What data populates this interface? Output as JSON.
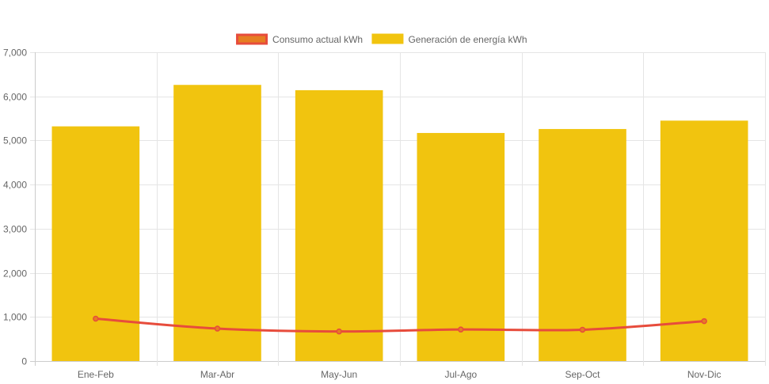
{
  "chart_data": {
    "type": "bar",
    "categories": [
      "Ene-Feb",
      "Mar-Abr",
      "May-Jun",
      "Jul-Ago",
      "Sep-Oct",
      "Nov-Dic"
    ],
    "series": [
      {
        "name": "Consumo actual kWh",
        "type": "line",
        "color": "#e74c3c",
        "fill": "#e67e22",
        "values": [
          960,
          735,
          670,
          715,
          710,
          905
        ]
      },
      {
        "name": "Generación de energía kWh",
        "type": "bar",
        "color": "#f1c40f",
        "values": [
          5320,
          6260,
          6140,
          5170,
          5260,
          5450
        ]
      }
    ],
    "y_ticks": [
      "0",
      "1,000",
      "2,000",
      "3,000",
      "4,000",
      "5,000",
      "6,000",
      "7,000"
    ],
    "ylim": [
      0,
      7000
    ],
    "grid": true,
    "legend_position": "top-center",
    "title": "",
    "xlabel": "",
    "ylabel": ""
  }
}
